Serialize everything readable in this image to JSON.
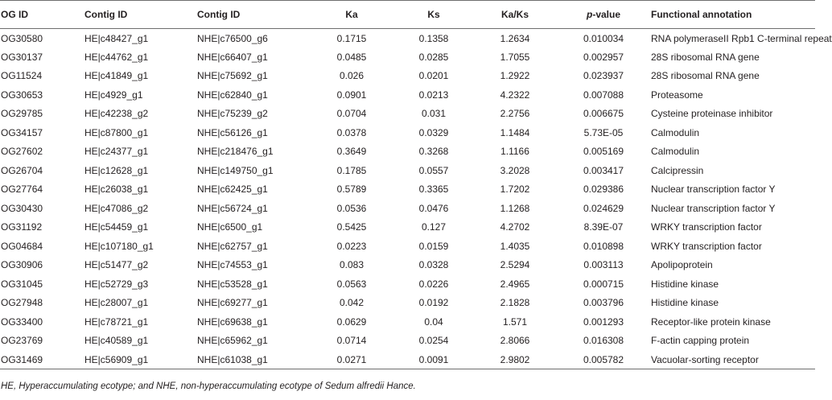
{
  "headers": {
    "og_id": "OG ID",
    "contig_he": "Contig ID",
    "contig_nhe": "Contig ID",
    "ka": "Ka",
    "ks": "Ks",
    "ka_ks": "Ka/Ks",
    "p_prefix": "p",
    "p_suffix": "-value",
    "annotation": "Functional annotation"
  },
  "rows": [
    {
      "og": "OG30580",
      "he": "HE|c48427_g1",
      "nhe": "NHE|c76500_g6",
      "ka": "0.1715",
      "ks": "0.1358",
      "kaks": "1.2634",
      "p": "0.010034",
      "fa": "RNA polymeraseII Rpb1 C-terminal repeat"
    },
    {
      "og": "OG30137",
      "he": "HE|c44762_g1",
      "nhe": "NHE|c66407_g1",
      "ka": "0.0485",
      "ks": "0.0285",
      "kaks": "1.7055",
      "p": "0.002957",
      "fa": "28S ribosomal RNA gene"
    },
    {
      "og": "OG11524",
      "he": "HE|c41849_g1",
      "nhe": "NHE|c75692_g1",
      "ka": "0.026",
      "ks": "0.0201",
      "kaks": "1.2922",
      "p": "0.023937",
      "fa": "28S ribosomal RNA gene"
    },
    {
      "og": "OG30653",
      "he": "HE|c4929_g1",
      "nhe": "NHE|c62840_g1",
      "ka": "0.0901",
      "ks": "0.0213",
      "kaks": "4.2322",
      "p": "0.007088",
      "fa": "Proteasome"
    },
    {
      "og": "OG29785",
      "he": "HE|c42238_g2",
      "nhe": "NHE|c75239_g2",
      "ka": "0.0704",
      "ks": "0.031",
      "kaks": "2.2756",
      "p": "0.006675",
      "fa": "Cysteine proteinase inhibitor"
    },
    {
      "og": "OG34157",
      "he": "HE|c87800_g1",
      "nhe": "NHE|c56126_g1",
      "ka": "0.0378",
      "ks": "0.0329",
      "kaks": "1.1484",
      "p": "5.73E-05",
      "fa": "Calmodulin"
    },
    {
      "og": "OG27602",
      "he": "HE|c24377_g1",
      "nhe": "NHE|c218476_g1",
      "ka": "0.3649",
      "ks": "0.3268",
      "kaks": "1.1166",
      "p": "0.005169",
      "fa": "Calmodulin"
    },
    {
      "og": "OG26704",
      "he": "HE|c12628_g1",
      "nhe": "NHE|c149750_g1",
      "ka": "0.1785",
      "ks": "0.0557",
      "kaks": "3.2028",
      "p": "0.003417",
      "fa": "Calcipressin"
    },
    {
      "og": "OG27764",
      "he": "HE|c26038_g1",
      "nhe": "NHE|c62425_g1",
      "ka": "0.5789",
      "ks": "0.3365",
      "kaks": "1.7202",
      "p": "0.029386",
      "fa": "Nuclear transcription factor Y"
    },
    {
      "og": "OG30430",
      "he": "HE|c47086_g2",
      "nhe": "NHE|c56724_g1",
      "ka": "0.0536",
      "ks": "0.0476",
      "kaks": "1.1268",
      "p": "0.024629",
      "fa": "Nuclear transcription factor Y"
    },
    {
      "og": "OG31192",
      "he": "HE|c54459_g1",
      "nhe": "NHE|c6500_g1",
      "ka": "0.5425",
      "ks": "0.127",
      "kaks": "4.2702",
      "p": "8.39E-07",
      "fa": "WRKY transcription factor"
    },
    {
      "og": "OG04684",
      "he": "HE|c107180_g1",
      "nhe": "NHE|c62757_g1",
      "ka": "0.0223",
      "ks": "0.0159",
      "kaks": "1.4035",
      "p": "0.010898",
      "fa": "WRKY transcription factor"
    },
    {
      "og": "OG30906",
      "he": "HE|c51477_g2",
      "nhe": "NHE|c74553_g1",
      "ka": "0.083",
      "ks": "0.0328",
      "kaks": "2.5294",
      "p": "0.003113",
      "fa": "Apolipoprotein"
    },
    {
      "og": "OG31045",
      "he": "HE|c52729_g3",
      "nhe": "NHE|c53528_g1",
      "ka": "0.0563",
      "ks": "0.0226",
      "kaks": "2.4965",
      "p": "0.000715",
      "fa": "Histidine kinase"
    },
    {
      "og": "OG27948",
      "he": "HE|c28007_g1",
      "nhe": "NHE|c69277_g1",
      "ka": "0.042",
      "ks": "0.0192",
      "kaks": "2.1828",
      "p": "0.003796",
      "fa": "Histidine kinase"
    },
    {
      "og": "OG33400",
      "he": "HE|c78721_g1",
      "nhe": "NHE|c69638_g1",
      "ka": "0.0629",
      "ks": "0.04",
      "kaks": "1.571",
      "p": "0.001293",
      "fa": "Receptor-like protein kinase"
    },
    {
      "og": "OG23769",
      "he": "HE|c40589_g1",
      "nhe": "NHE|c65962_g1",
      "ka": "0.0714",
      "ks": "0.0254",
      "kaks": "2.8066",
      "p": "0.016308",
      "fa": "F-actin capping protein"
    },
    {
      "og": "OG31469",
      "he": "HE|c56909_g1",
      "nhe": "NHE|c61038_g1",
      "ka": "0.0271",
      "ks": "0.0091",
      "kaks": "2.9802",
      "p": "0.005782",
      "fa": "Vacuolar-sorting receptor"
    }
  ],
  "footnote": "HE, Hyperaccumulating ecotype; and NHE, non-hyperaccumulating ecotype of Sedum alfredii Hance."
}
